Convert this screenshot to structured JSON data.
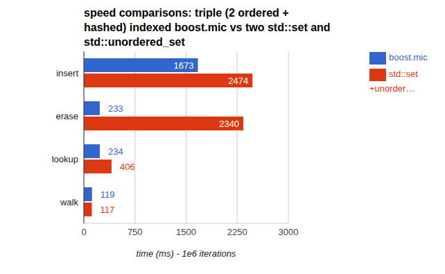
{
  "chart_data": {
    "type": "bar",
    "orientation": "horizontal",
    "title": "speed comparisons: triple (2 ordered + hashed) indexed boost.mic vs two std::set and std::unordered_set",
    "x_label": "time (ms) - 1e6 iterations",
    "categories": [
      "insert",
      "erase",
      "lookup",
      "walk"
    ],
    "series": [
      {
        "name": "boost.mic",
        "color": "#3366cc",
        "values": [
          1673,
          233,
          234,
          119
        ]
      },
      {
        "name": "std::set +unorder…",
        "color": "#dc3912",
        "values": [
          2474,
          2340,
          406,
          117
        ]
      }
    ],
    "xlim": [
      0,
      3000
    ],
    "xticks": [
      0,
      750,
      1500,
      2250,
      3000
    ],
    "grid": true,
    "legend": "right",
    "data_labels": true
  }
}
